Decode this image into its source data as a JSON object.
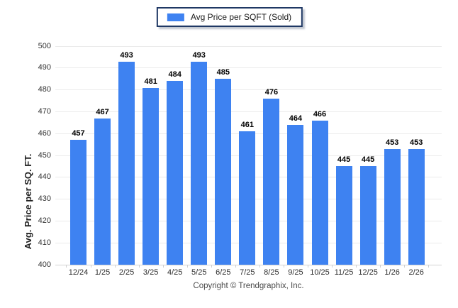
{
  "legend": {
    "label": "Avg Price per SQFT (Sold)",
    "swatch_color": "#3e82f1"
  },
  "footer": {
    "copyright": "Copyright © Trendgraphix, Inc."
  },
  "chart_data": {
    "type": "bar",
    "title": "",
    "xlabel": "",
    "ylabel": "Avg. Price per SQ. FT.",
    "categories": [
      "12/24",
      "1/25",
      "2/25",
      "3/25",
      "4/25",
      "5/25",
      "6/25",
      "7/25",
      "8/25",
      "9/25",
      "10/25",
      "11/25",
      "12/25",
      "1/26",
      "2/26"
    ],
    "series": [
      {
        "name": "Avg Price per SQFT (Sold)",
        "values": [
          457,
          467,
          493,
          481,
          484,
          493,
          485,
          461,
          476,
          464,
          466,
          445,
          445,
          453,
          453
        ]
      }
    ],
    "ylim": [
      400,
      500
    ],
    "ytick_step": 10,
    "grid": true,
    "legend_position": "top-center",
    "bar_color": "#3e82f1",
    "grid_color": "#ebebeb"
  }
}
